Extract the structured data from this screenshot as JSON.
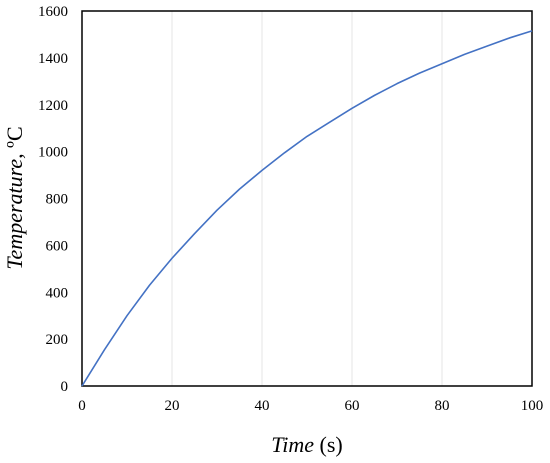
{
  "chart_data": {
    "type": "line",
    "xlabel_italic": "Time",
    "xlabel_unit": " (s)",
    "ylabel_italic": "Temperature,",
    "ylabel_unit": " ºC",
    "xlim": [
      0,
      100
    ],
    "ylim": [
      0,
      1600
    ],
    "x_ticks": [
      0,
      20,
      40,
      60,
      80,
      100
    ],
    "y_ticks": [
      0,
      200,
      400,
      600,
      800,
      1000,
      1200,
      1400,
      1600
    ],
    "grid": true,
    "line_color": "#4472C4",
    "series": [
      {
        "x": [
          0,
          5,
          10,
          15,
          20,
          25,
          30,
          35,
          40,
          45,
          50,
          55,
          60,
          65,
          70,
          75,
          80,
          85,
          90,
          95,
          100
        ],
        "y": [
          0,
          155,
          300,
          430,
          545,
          650,
          750,
          840,
          920,
          995,
          1065,
          1125,
          1185,
          1240,
          1290,
          1335,
          1375,
          1415,
          1450,
          1485,
          1515
        ]
      }
    ]
  }
}
